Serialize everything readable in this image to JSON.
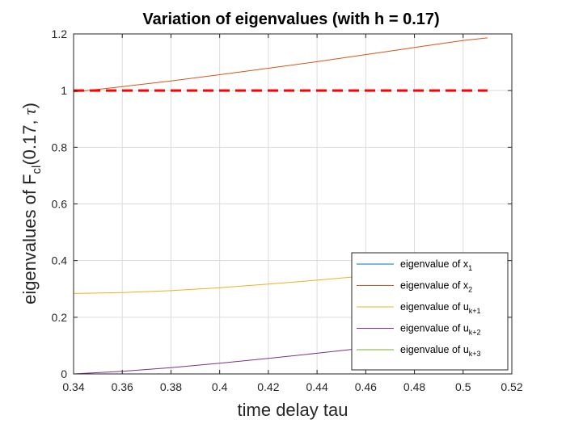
{
  "chart_data": {
    "type": "line",
    "title": "Variation of eigenvalues (with h = 0.17)",
    "xlabel": "time delay tau",
    "ylabel": {
      "prefix": "eigenvalues of F",
      "sub": "cl",
      "suffix_open": "(0.17, ",
      "tau": "τ",
      "suffix_close": ")"
    },
    "xlim": [
      0.34,
      0.52
    ],
    "ylim": [
      0,
      1.2
    ],
    "xticks": [
      0.34,
      0.36,
      0.38,
      0.4,
      0.42,
      0.44,
      0.46,
      0.48,
      0.5,
      0.52
    ],
    "xtick_labels": [
      "0.34",
      "0.36",
      "0.38",
      "0.4",
      "0.42",
      "0.44",
      "0.46",
      "0.48",
      "0.5",
      "0.52"
    ],
    "yticks": [
      0,
      0.2,
      0.4,
      0.6,
      0.8,
      1,
      1.2
    ],
    "ytick_labels": [
      "0",
      "0.2",
      "0.4",
      "0.6",
      "0.8",
      "1",
      "1.2"
    ],
    "grid": true,
    "legend_position": "bottom-right",
    "x": [
      0.34,
      0.36,
      0.38,
      0.4,
      0.42,
      0.44,
      0.46,
      0.48,
      0.5,
      0.51
    ],
    "series": [
      {
        "label_text": "eigenvalue of x",
        "label_sub": "1",
        "color": "#0072BD",
        "values": [
          0,
          0,
          0,
          0,
          0,
          0,
          0,
          0,
          0,
          0
        ]
      },
      {
        "label_text": "eigenvalue of x",
        "label_sub": "2",
        "color": "#D95319",
        "values": [
          0.995,
          1.014,
          1.034,
          1.056,
          1.079,
          1.102,
          1.127,
          1.152,
          1.177,
          1.186
        ]
      },
      {
        "label_text": "eigenvalue of u",
        "label_sub": "k+1",
        "color": "#EDB120",
        "values": [
          0.284,
          0.287,
          0.294,
          0.304,
          0.317,
          0.331,
          0.346,
          0.362,
          0.378,
          0.386
        ]
      },
      {
        "label_text": "eigenvalue of u",
        "label_sub": "k+2",
        "color": "#7E2F8E",
        "values": [
          0.0,
          0.009,
          0.022,
          0.038,
          0.055,
          0.073,
          0.092,
          0.111,
          0.131,
          0.141
        ]
      },
      {
        "label_text": "eigenvalue of u",
        "label_sub": "k+3",
        "color": "#77AC30",
        "values": [
          0,
          0,
          0,
          0,
          0,
          0,
          0,
          0,
          0,
          0
        ]
      }
    ],
    "reference_line": {
      "y": 1,
      "color": "#FF0000",
      "style": "dashed"
    }
  }
}
